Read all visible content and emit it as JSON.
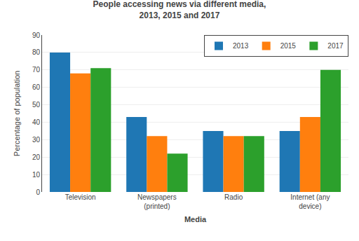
{
  "chart_data": {
    "type": "bar",
    "title": "People accessing news via different media,\n2013, 2015 and 2017",
    "categories": [
      "Television",
      "Newspapers\n(printed)",
      "Radio",
      "Internet (any\ndevice)"
    ],
    "series": [
      {
        "name": "2013",
        "values": [
          80,
          43,
          35,
          35
        ]
      },
      {
        "name": "2015",
        "values": [
          68,
          32,
          32,
          43
        ]
      },
      {
        "name": "2017",
        "values": [
          71,
          22,
          32,
          70
        ]
      }
    ],
    "xlabel": "Media",
    "ylabel": "Percentage of population",
    "ylim": [
      0,
      90
    ],
    "yticks": [
      0,
      10,
      20,
      30,
      40,
      50,
      60,
      70,
      80,
      90
    ],
    "grid": true,
    "legend": "upper right"
  }
}
